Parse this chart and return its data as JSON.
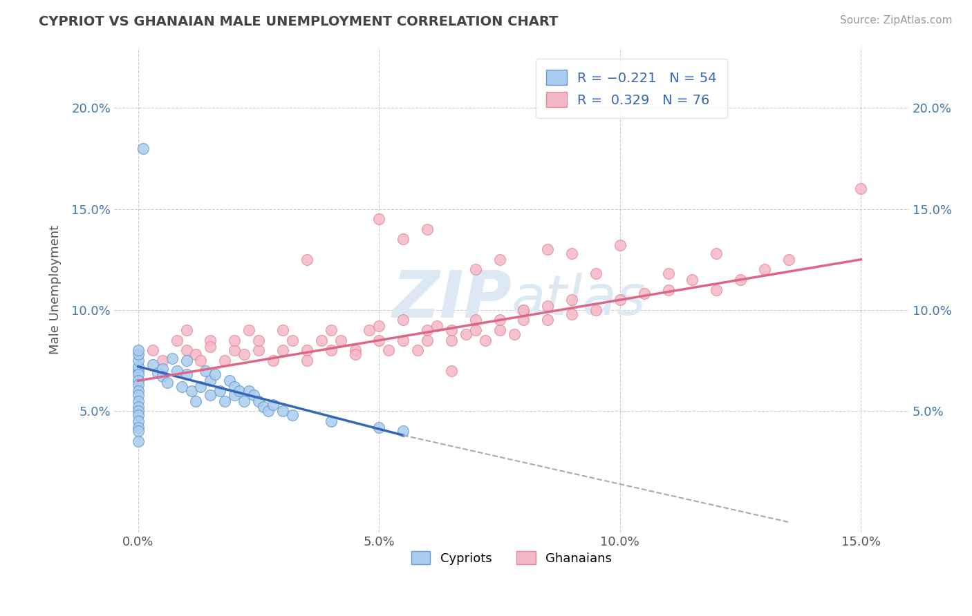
{
  "title": "CYPRIOT VS GHANAIAN MALE UNEMPLOYMENT CORRELATION CHART",
  "source": "Source: ZipAtlas.com",
  "xlabel_vals": [
    0.0,
    5.0,
    10.0,
    15.0
  ],
  "ylabel": "Male Unemployment",
  "ylabel_vals": [
    5.0,
    10.0,
    15.0,
    20.0
  ],
  "xlim": [
    -0.5,
    16.0
  ],
  "ylim": [
    -1.0,
    23.0
  ],
  "cypriot_color": "#aaccee",
  "ghanaian_color": "#f5b8c8",
  "cypriot_edge": "#6699cc",
  "ghanaian_edge": "#e08898",
  "trend_blue": "#3366bb",
  "trend_pink": "#dd6688",
  "trend_dash": "#aaaaaa",
  "background": "#ffffff",
  "grid_color": "#cccccc",
  "watermark_color": "#dde8f5",
  "cypriot_x": [
    0.0,
    0.0,
    0.0,
    0.0,
    0.0,
    0.0,
    0.0,
    0.0,
    0.0,
    0.0,
    0.0,
    0.0,
    0.0,
    0.0,
    0.0,
    0.0,
    0.0,
    0.0,
    0.3,
    0.4,
    0.5,
    0.5,
    0.6,
    0.7,
    0.8,
    0.9,
    1.0,
    1.0,
    1.1,
    1.2,
    1.3,
    1.4,
    1.5,
    1.5,
    1.6,
    1.7,
    1.8,
    1.9,
    2.0,
    2.0,
    2.1,
    2.2,
    2.3,
    2.4,
    2.5,
    2.6,
    2.7,
    2.8,
    3.0,
    3.2,
    4.0,
    5.0,
    5.5,
    0.1
  ],
  "cypriot_y": [
    7.0,
    7.2,
    7.5,
    7.8,
    8.0,
    6.8,
    6.5,
    6.3,
    6.0,
    5.8,
    5.5,
    5.2,
    5.0,
    4.8,
    4.5,
    4.2,
    4.0,
    3.5,
    7.3,
    6.9,
    7.1,
    6.7,
    6.4,
    7.6,
    7.0,
    6.2,
    7.5,
    6.8,
    6.0,
    5.5,
    6.2,
    7.0,
    6.5,
    5.8,
    6.8,
    6.0,
    5.5,
    6.5,
    6.2,
    5.8,
    6.0,
    5.5,
    6.0,
    5.8,
    5.5,
    5.2,
    5.0,
    5.3,
    5.0,
    4.8,
    4.5,
    4.2,
    4.0,
    18.0
  ],
  "ghanaian_x": [
    0.3,
    0.5,
    0.8,
    1.0,
    1.0,
    1.2,
    1.3,
    1.5,
    1.5,
    1.8,
    2.0,
    2.0,
    2.2,
    2.3,
    2.5,
    2.5,
    2.8,
    3.0,
    3.0,
    3.2,
    3.5,
    3.5,
    3.8,
    4.0,
    4.0,
    4.2,
    4.5,
    4.5,
    4.8,
    5.0,
    5.0,
    5.2,
    5.5,
    5.5,
    5.8,
    6.0,
    6.0,
    6.2,
    6.5,
    6.5,
    6.8,
    7.0,
    7.0,
    7.2,
    7.5,
    7.5,
    7.8,
    8.0,
    8.0,
    8.5,
    8.5,
    9.0,
    9.0,
    9.5,
    10.0,
    10.5,
    11.0,
    11.5,
    12.0,
    12.5,
    13.0,
    13.5,
    5.0,
    5.5,
    6.0,
    6.5,
    7.0,
    7.5,
    8.0,
    8.5,
    9.0,
    9.5,
    10.0,
    11.0,
    12.0,
    15.0,
    3.5
  ],
  "ghanaian_y": [
    8.0,
    7.5,
    8.5,
    8.0,
    9.0,
    7.8,
    7.5,
    8.5,
    8.2,
    7.5,
    8.0,
    8.5,
    7.8,
    9.0,
    8.0,
    8.5,
    7.5,
    8.0,
    9.0,
    8.5,
    8.0,
    7.5,
    8.5,
    8.0,
    9.0,
    8.5,
    8.0,
    7.8,
    9.0,
    8.5,
    9.2,
    8.0,
    8.5,
    9.5,
    8.0,
    9.0,
    8.5,
    9.2,
    8.5,
    9.0,
    8.8,
    9.0,
    9.5,
    8.5,
    9.0,
    9.5,
    8.8,
    9.5,
    10.0,
    9.5,
    10.2,
    9.8,
    10.5,
    10.0,
    10.5,
    10.8,
    11.0,
    11.5,
    11.0,
    11.5,
    12.0,
    12.5,
    14.5,
    13.5,
    14.0,
    7.0,
    12.0,
    12.5,
    10.0,
    13.0,
    12.8,
    11.8,
    13.2,
    11.8,
    12.8,
    16.0,
    12.5
  ],
  "blue_trend_x0": 0.0,
  "blue_trend_y0": 7.2,
  "blue_trend_x1": 5.5,
  "blue_trend_y1": 3.8,
  "blue_solid_end": 5.5,
  "blue_dash_x1": 13.5,
  "blue_dash_y1": -0.5,
  "pink_trend_x0": 0.0,
  "pink_trend_y0": 6.5,
  "pink_trend_x1": 15.0,
  "pink_trend_y1": 12.5
}
